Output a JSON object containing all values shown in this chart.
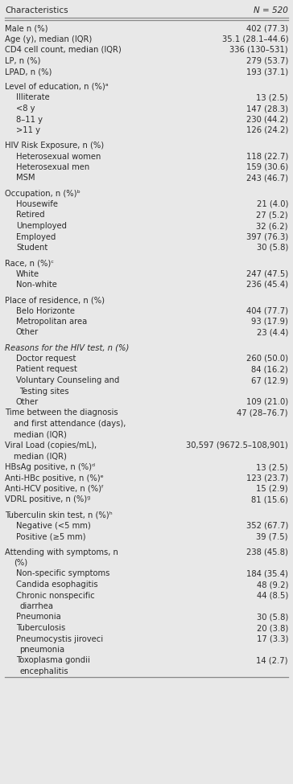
{
  "title_left": "Characteristics",
  "title_right": "N = 520",
  "bg_color": "#e8e8e8",
  "text_color": "#2a2a2a",
  "rows": [
    {
      "text": "Male n (%)",
      "value": "402 (77.3)",
      "indent": 0,
      "italic": false,
      "spacer": false
    },
    {
      "text": "Age (y), median (IQR)",
      "value": "35.1 (28.1–44.6)",
      "indent": 0,
      "italic": false,
      "spacer": false
    },
    {
      "text": "CD4 cell count, median (IQR)",
      "value": "336 (130–531)",
      "indent": 0,
      "italic": false,
      "spacer": false
    },
    {
      "text": "LP, n (%)",
      "value": "279 (53.7)",
      "indent": 0,
      "italic": false,
      "spacer": false
    },
    {
      "text": "LPAD, n (%)",
      "value": "193 (37.1)",
      "indent": 0,
      "italic": false,
      "spacer": false
    },
    {
      "text": "",
      "value": "",
      "indent": 0,
      "italic": false,
      "spacer": true
    },
    {
      "text": "Level of education, n (%)ᵃ",
      "value": "",
      "indent": 0,
      "italic": false,
      "spacer": false
    },
    {
      "text": "Illiterate",
      "value": "13 (2.5)",
      "indent": 1,
      "italic": false,
      "spacer": false
    },
    {
      "text": "<8 y",
      "value": "147 (28.3)",
      "indent": 1,
      "italic": false,
      "spacer": false
    },
    {
      "text": "8–11 y",
      "value": "230 (44.2)",
      "indent": 1,
      "italic": false,
      "spacer": false
    },
    {
      "text": ">11 y",
      "value": "126 (24.2)",
      "indent": 1,
      "italic": false,
      "spacer": false
    },
    {
      "text": "",
      "value": "",
      "indent": 0,
      "italic": false,
      "spacer": true
    },
    {
      "text": "HIV Risk Exposure, n (%)",
      "value": "",
      "indent": 0,
      "italic": false,
      "spacer": false
    },
    {
      "text": "Heterosexual women",
      "value": "118 (22.7)",
      "indent": 1,
      "italic": false,
      "spacer": false
    },
    {
      "text": "Heterosexual men",
      "value": "159 (30.6)",
      "indent": 1,
      "italic": false,
      "spacer": false
    },
    {
      "text": "MSM",
      "value": "243 (46.7)",
      "indent": 1,
      "italic": false,
      "spacer": false
    },
    {
      "text": "",
      "value": "",
      "indent": 0,
      "italic": false,
      "spacer": true
    },
    {
      "text": "Occupation, n (%)ᵇ",
      "value": "",
      "indent": 0,
      "italic": false,
      "spacer": false
    },
    {
      "text": "Housewife",
      "value": "21 (4.0)",
      "indent": 1,
      "italic": false,
      "spacer": false
    },
    {
      "text": "Retired",
      "value": "27 (5.2)",
      "indent": 1,
      "italic": false,
      "spacer": false
    },
    {
      "text": "Unemployed",
      "value": "32 (6.2)",
      "indent": 1,
      "italic": false,
      "spacer": false
    },
    {
      "text": "Employed",
      "value": "397 (76.3)",
      "indent": 1,
      "italic": false,
      "spacer": false
    },
    {
      "text": "Student",
      "value": "30 (5.8)",
      "indent": 1,
      "italic": false,
      "spacer": false
    },
    {
      "text": "",
      "value": "",
      "indent": 0,
      "italic": false,
      "spacer": true
    },
    {
      "text": "Race, n (%)ᶜ",
      "value": "",
      "indent": 0,
      "italic": false,
      "spacer": false
    },
    {
      "text": "White",
      "value": "247 (47.5)",
      "indent": 1,
      "italic": false,
      "spacer": false
    },
    {
      "text": "Non-white",
      "value": "236 (45.4)",
      "indent": 1,
      "italic": false,
      "spacer": false
    },
    {
      "text": "",
      "value": "",
      "indent": 0,
      "italic": false,
      "spacer": true
    },
    {
      "text": "Place of residence, n (%)",
      "value": "",
      "indent": 0,
      "italic": false,
      "spacer": false
    },
    {
      "text": "Belo Horizonte",
      "value": "404 (77.7)",
      "indent": 1,
      "italic": false,
      "spacer": false
    },
    {
      "text": "Metropolitan area",
      "value": "93 (17.9)",
      "indent": 1,
      "italic": false,
      "spacer": false
    },
    {
      "text": "Other",
      "value": "23 (4.4)",
      "indent": 1,
      "italic": false,
      "spacer": false
    },
    {
      "text": "",
      "value": "",
      "indent": 0,
      "italic": false,
      "spacer": true
    },
    {
      "text": "Reasons for the HIV test, n (%)",
      "value": "",
      "indent": 0,
      "italic": true,
      "spacer": false
    },
    {
      "text": "Doctor request",
      "value": "260 (50.0)",
      "indent": 1,
      "italic": false,
      "spacer": false
    },
    {
      "text": "Patient request",
      "value": "84 (16.2)",
      "indent": 1,
      "italic": false,
      "spacer": false
    },
    {
      "text": "Voluntary Counseling and\nTesting sites",
      "value": "67 (12.9)",
      "indent": 1,
      "italic": false,
      "spacer": false
    },
    {
      "text": "Other",
      "value": "109 (21.0)",
      "indent": 1,
      "italic": false,
      "spacer": false
    },
    {
      "text": "Time between the diagnosis\nand first attendance (days),\nmedian (IQR)",
      "value": "47 (28–76.7)",
      "indent": 0,
      "italic": false,
      "spacer": false
    },
    {
      "text": "Viral Load (copies/mL),\nmedian (IQR)",
      "value": "30,597 (9672.5–108,901)",
      "indent": 0,
      "italic": false,
      "spacer": false
    },
    {
      "text": "HBsAg positive, n (%)ᵈ",
      "value": "13 (2.5)",
      "indent": 0,
      "italic": false,
      "spacer": false
    },
    {
      "text": "Anti-HBc positive, n (%)ᵉ",
      "value": "123 (23.7)",
      "indent": 0,
      "italic": false,
      "spacer": false
    },
    {
      "text": "Anti-HCV positive, n (%)ᶠ",
      "value": "15 (2.9)",
      "indent": 0,
      "italic": false,
      "spacer": false
    },
    {
      "text": "VDRL positive, n (%)ᵍ",
      "value": "81 (15.6)",
      "indent": 0,
      "italic": false,
      "spacer": false
    },
    {
      "text": "",
      "value": "",
      "indent": 0,
      "italic": false,
      "spacer": true
    },
    {
      "text": "Tuberculin skin test, n (%)ʰ",
      "value": "",
      "indent": 0,
      "italic": false,
      "spacer": false
    },
    {
      "text": "Negative (<5 mm)",
      "value": "352 (67.7)",
      "indent": 1,
      "italic": false,
      "spacer": false
    },
    {
      "text": "Positive (≥5 mm)",
      "value": "39 (7.5)",
      "indent": 1,
      "italic": false,
      "spacer": false
    },
    {
      "text": "",
      "value": "",
      "indent": 0,
      "italic": false,
      "spacer": true
    },
    {
      "text": "Attending with symptoms, n\n(%)",
      "value": "238 (45.8)",
      "indent": 0,
      "italic": false,
      "spacer": false
    },
    {
      "text": "Non-specific symptoms",
      "value": "184 (35.4)",
      "indent": 1,
      "italic": false,
      "spacer": false
    },
    {
      "text": "Candida esophagitis",
      "value": "48 (9.2)",
      "indent": 1,
      "italic": false,
      "spacer": false
    },
    {
      "text": "Chronic nonspecific\ndiarrhea",
      "value": "44 (8.5)",
      "indent": 1,
      "italic": false,
      "spacer": false
    },
    {
      "text": "Pneumonia",
      "value": "30 (5.8)",
      "indent": 1,
      "italic": false,
      "spacer": false
    },
    {
      "text": "Tuberculosis",
      "value": "20 (3.8)",
      "indent": 1,
      "italic": false,
      "spacer": false
    },
    {
      "text": "Pneumocystis jiroveci\npneumonia",
      "value": "17 (3.3)",
      "indent": 1,
      "italic": false,
      "spacer": false
    },
    {
      "text": "Toxoplasma gondii\nencephalitis",
      "value": "14 (2.7)",
      "indent": 1,
      "italic": false,
      "spacer": false
    }
  ]
}
